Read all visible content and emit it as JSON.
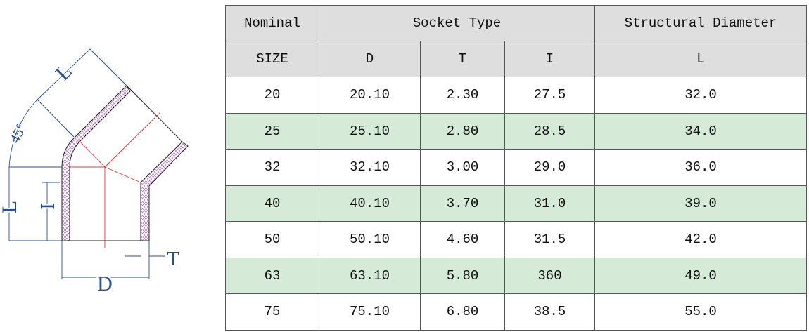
{
  "diagram": {
    "labels": {
      "L_top": "L",
      "angle": "45°",
      "L_left": "L",
      "I": "I",
      "D": "D",
      "T": "T"
    },
    "colors": {
      "outline": "#222222",
      "dimension": "#2a4f8f",
      "centerline": "#d9383a",
      "hatch": "#b07ab8"
    }
  },
  "table": {
    "header1": [
      "Nominal",
      "Socket Type",
      "Structural Diameter"
    ],
    "header2": [
      "SIZE",
      "D",
      "T",
      "I",
      "L"
    ],
    "rows": [
      [
        "20",
        "20.10",
        "2.30",
        "27.5",
        "32.0"
      ],
      [
        "25",
        "25.10",
        "2.80",
        "28.5",
        "34.0"
      ],
      [
        "32",
        "32.10",
        "3.00",
        "29.0",
        "36.0"
      ],
      [
        "40",
        "40.10",
        "3.70",
        "31.0",
        "39.0"
      ],
      [
        "50",
        "50.10",
        "4.60",
        "31.5",
        "42.0"
      ],
      [
        "63",
        "63.10",
        "5.80",
        "360",
        "49.0"
      ],
      [
        "75",
        "75.10",
        "6.80",
        "38.5",
        "55.0"
      ]
    ],
    "colors": {
      "header_bg": "#dedede",
      "alt_row_bg": "#d5ebd8"
    }
  }
}
